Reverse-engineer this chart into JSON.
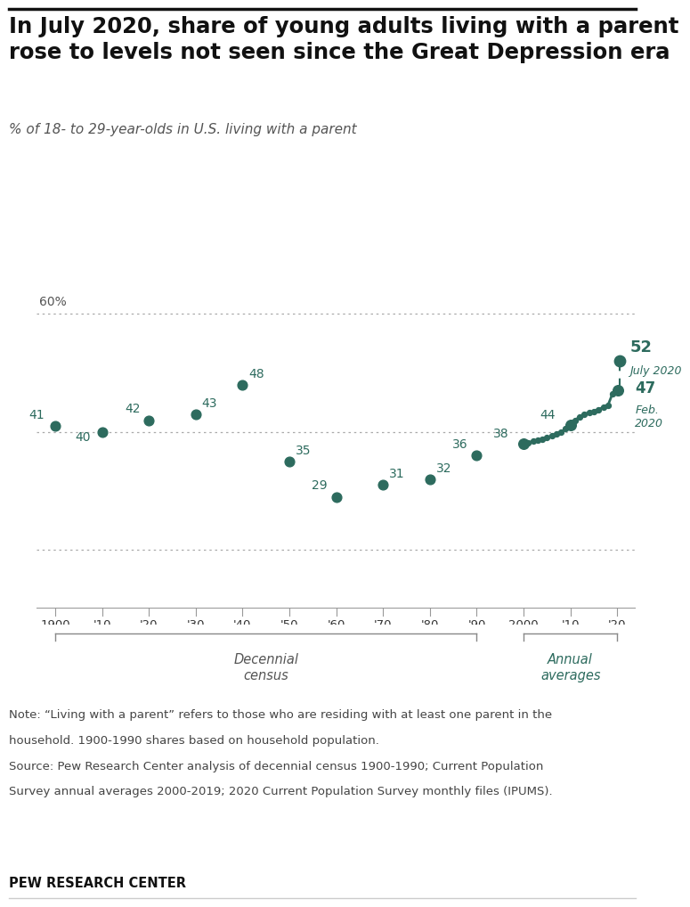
{
  "title": "In July 2020, share of young adults living with a parent\nrose to levels not seen since the Great Depression era",
  "subtitle": "% of 18- to 29-year-olds in U.S. living with a parent",
  "note1": "Note: “Living with a parent” refers to those who are residing with at least one parent in the",
  "note2": "household. 1900-1990 shares based on household population.",
  "note3": "Source: Pew Research Center analysis of decennial census 1900-1990; Current Population",
  "note4": "Survey annual averages 2000-2019; 2020 Current Population Survey monthly files (IPUMS).",
  "footer": "PEW RESEARCH CENTER",
  "census_years": [
    1900,
    1910,
    1920,
    1930,
    1940,
    1950,
    1960,
    1970,
    1980,
    1990
  ],
  "census_values": [
    41,
    40,
    42,
    43,
    48,
    35,
    29,
    31,
    32,
    36
  ],
  "annual_years": [
    2000,
    2001,
    2002,
    2003,
    2004,
    2005,
    2006,
    2007,
    2008,
    2009,
    2010,
    2011,
    2012,
    2013,
    2014,
    2015,
    2016,
    2017,
    2018,
    2019
  ],
  "annual_values": [
    38,
    38.2,
    38.4,
    38.6,
    38.8,
    39.0,
    39.3,
    39.6,
    40.0,
    40.5,
    41.2,
    42.0,
    42.6,
    43.0,
    43.3,
    43.5,
    43.8,
    44.2,
    44.5,
    46.5
  ],
  "feb2020_value": 47,
  "july2020_value": 52,
  "dot_color": "#2d6b5e",
  "grid_color": "#aaaaaa",
  "background_color": "#ffffff",
  "title_fontsize": 17.5,
  "subtitle_fontsize": 11,
  "note_fontsize": 9.5,
  "ylim_min": 10,
  "ylim_max": 68,
  "xlim_min": 1896,
  "xlim_max": 2024,
  "xtick_labels": [
    "1900",
    "'10",
    "'20",
    "'30",
    "'40",
    "'50",
    "'60",
    "'70",
    "'80",
    "'90",
    "2000",
    "'10",
    "'20"
  ],
  "xtick_positions": [
    1900,
    1910,
    1920,
    1930,
    1940,
    1950,
    1960,
    1970,
    1980,
    1990,
    2000,
    2010,
    2020
  ],
  "grid_levels": [
    20,
    40,
    60
  ],
  "label_offsets": {
    "1900": [
      -9,
      4,
      "right"
    ],
    "1910": [
      -9,
      -9,
      "right"
    ],
    "1920": [
      -7,
      4,
      "right"
    ],
    "1930": [
      5,
      4,
      "left"
    ],
    "1940": [
      5,
      4,
      "left"
    ],
    "1950": [
      5,
      4,
      "left"
    ],
    "1960": [
      -7,
      4,
      "right"
    ],
    "1970": [
      5,
      4,
      "left"
    ],
    "1980": [
      5,
      4,
      "left"
    ],
    "1990": [
      -7,
      4,
      "right"
    ]
  },
  "census_labels": {
    "1900": "41",
    "1910": "40",
    "1920": "42",
    "1930": "43",
    "1940": "48",
    "1950": "35",
    "1960": "29",
    "1970": "31",
    "1980": "32",
    "1990": "36"
  }
}
